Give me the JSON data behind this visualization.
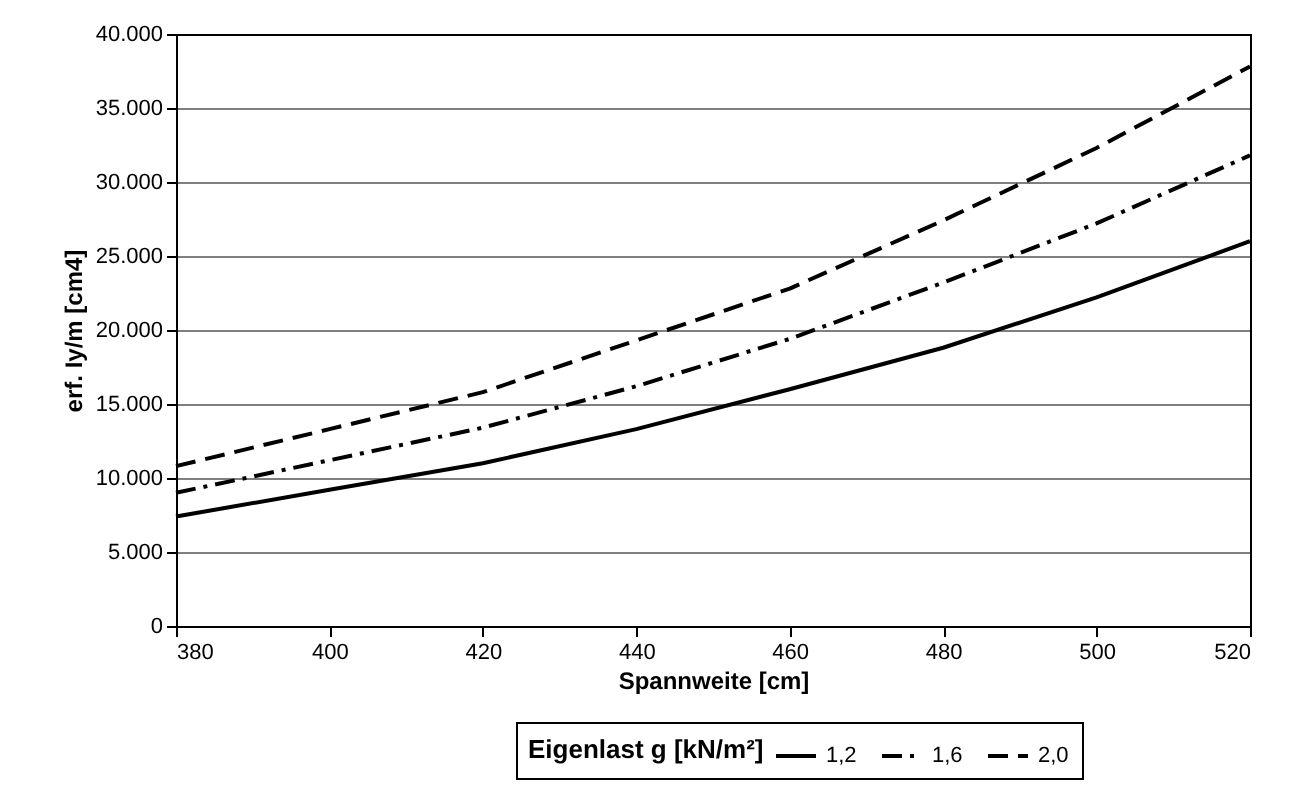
{
  "chart_data": {
    "type": "line",
    "xlabel": "Spannweite [cm]",
    "ylabel": "erf. Iy/m [cm4]",
    "legend_title": "Eigenlast g [kN/m²]",
    "legend": "bottom right",
    "grid": "y",
    "marker": "none",
    "x": [
      380,
      400,
      420,
      440,
      460,
      480,
      500,
      520
    ],
    "xlim": [
      380,
      520
    ],
    "xticks": [
      380,
      400,
      420,
      440,
      460,
      480,
      500,
      520
    ],
    "ylim": [
      0,
      40000
    ],
    "yticks": [
      {
        "value": 0,
        "label": "0"
      },
      {
        "value": 5000,
        "label": "5.000"
      },
      {
        "value": 10000,
        "label": "10.000"
      },
      {
        "value": 15000,
        "label": "15.000"
      },
      {
        "value": 20000,
        "label": "20.000"
      },
      {
        "value": 25000,
        "label": "25.000"
      },
      {
        "value": 30000,
        "label": "30.000"
      },
      {
        "value": 35000,
        "label": "35.000"
      },
      {
        "value": 40000,
        "label": "40.000"
      }
    ],
    "series": [
      {
        "name": "1,2",
        "color": "#000000",
        "line_style": "solid",
        "values": [
          7400,
          9200,
          11000,
          13300,
          16000,
          18800,
          22200,
          26000
        ]
      },
      {
        "name": "1,6",
        "color": "#000000",
        "line_style": "dashdot",
        "values": [
          9000,
          11200,
          13400,
          16200,
          19400,
          23200,
          27200,
          31800
        ]
      },
      {
        "name": "2,0",
        "color": "#000000",
        "line_style": "dashed",
        "values": [
          10800,
          13300,
          15800,
          19300,
          22800,
          27400,
          32300,
          37800
        ]
      }
    ]
  }
}
